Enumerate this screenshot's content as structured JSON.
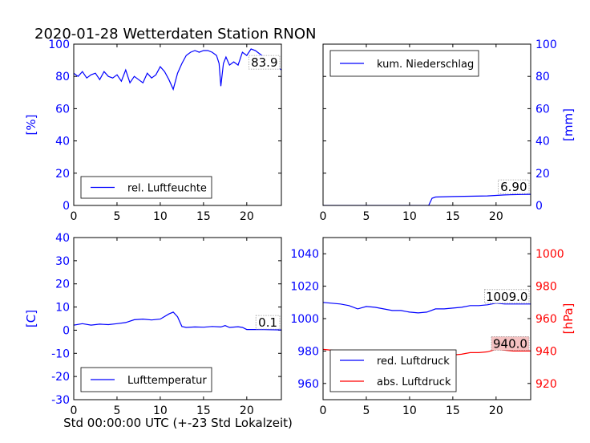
{
  "title": "2020-01-28 Wetterdaten Station RNON",
  "xlabel": "Std 00:00:00 UTC (+-23 Std Lokalzeit)",
  "colors": {
    "blue": "#0000ff",
    "red": "#ff0000",
    "value_box_red": "#f4c2c2",
    "value_box": "#ffffff"
  },
  "chart_data": [
    {
      "id": "humidity",
      "type": "line",
      "ylabel": "[%]",
      "ylabel_side": "left",
      "xlim": [
        0,
        24
      ],
      "ylim": [
        0,
        100
      ],
      "xticks": [
        0,
        5,
        10,
        15,
        20
      ],
      "yticks": [
        0,
        20,
        40,
        60,
        80,
        100
      ],
      "tick_color": "#0000ff",
      "legend": "lower-left",
      "current_value": "83.9",
      "series": [
        {
          "name": "rel. Luftfeuchte",
          "color": "#0000ff",
          "x": [
            0,
            0.5,
            1,
            1.5,
            2,
            2.5,
            3,
            3.5,
            4,
            4.5,
            5,
            5.5,
            6,
            6.5,
            7,
            7.5,
            8,
            8.5,
            9,
            9.5,
            10,
            10.5,
            11,
            11.5,
            12,
            12.5,
            13,
            13.5,
            14,
            14.5,
            15,
            15.5,
            16,
            16.5,
            16.8,
            17,
            17.3,
            17.6,
            18,
            18.5,
            19,
            19.5,
            20,
            20.5,
            21,
            21.5,
            22,
            22.5,
            23,
            23.5,
            24
          ],
          "y": [
            82,
            80,
            83,
            79,
            81,
            82,
            78,
            83,
            80,
            79,
            81,
            77,
            84,
            76,
            80,
            78,
            76,
            82,
            79,
            81,
            86,
            83,
            78,
            72,
            82,
            88,
            93,
            95,
            96,
            95,
            96,
            96,
            95,
            93,
            88,
            74,
            88,
            92,
            87,
            89,
            87,
            95,
            93,
            97,
            96,
            94,
            92,
            90,
            89,
            86,
            84
          ]
        }
      ]
    },
    {
      "id": "precipitation",
      "type": "line",
      "ylabel": "[mm]",
      "ylabel_side": "right",
      "xlim": [
        0,
        24
      ],
      "ylim": [
        0,
        100
      ],
      "xticks": [
        0,
        5,
        10,
        15,
        20
      ],
      "yticks": [
        0,
        20,
        40,
        60,
        80,
        100
      ],
      "tick_color": "#0000ff",
      "legend": "upper-left",
      "current_value": "6.90",
      "series": [
        {
          "name": "kum. Niederschlag",
          "color": "#0000ff",
          "x": [
            0,
            5,
            10,
            12.2,
            12.6,
            13,
            15,
            17,
            19,
            20,
            21,
            22,
            23,
            24
          ],
          "y": [
            0,
            0,
            0,
            0,
            4.5,
            5.2,
            5.5,
            5.7,
            5.9,
            6.2,
            6.5,
            6.7,
            6.8,
            6.9
          ]
        }
      ]
    },
    {
      "id": "temperature",
      "type": "line",
      "ylabel": "[C]",
      "ylabel_side": "left",
      "xlim": [
        0,
        24
      ],
      "ylim": [
        -30,
        40
      ],
      "xticks": [
        0,
        5,
        10,
        15,
        20
      ],
      "yticks": [
        -30,
        -20,
        -10,
        0,
        10,
        20,
        30,
        40
      ],
      "tick_color": "#0000ff",
      "legend": "lower-left",
      "current_value": "0.1",
      "series": [
        {
          "name": "Lufttemperatur",
          "color": "#0000ff",
          "x": [
            0,
            1,
            2,
            3,
            4,
            5,
            6,
            7,
            8,
            9,
            10,
            11,
            11.5,
            12,
            12.5,
            13,
            14,
            15,
            16,
            17,
            17.5,
            18,
            19,
            19.5,
            20,
            21,
            22,
            23,
            24
          ],
          "y": [
            2.2,
            2.8,
            2.2,
            2.6,
            2.4,
            2.8,
            3.3,
            4.5,
            4.8,
            4.4,
            4.8,
            7,
            7.8,
            5.8,
            1.6,
            1.2,
            1.4,
            1.3,
            1.6,
            1.4,
            2,
            1.2,
            1.5,
            1.2,
            0.3,
            0.3,
            0.3,
            0.2,
            0.1
          ]
        }
      ]
    },
    {
      "id": "pressure",
      "type": "line",
      "ylabel": "[hPa]",
      "ylabel_side": "right",
      "xlim": [
        0,
        24
      ],
      "ylim": [
        950,
        1050
      ],
      "xticks": [
        0,
        5,
        10,
        15,
        20
      ],
      "yticks": [
        960,
        980,
        1000,
        1020,
        1040
      ],
      "y2lim": [
        910,
        1010
      ],
      "y2ticks": [
        920,
        940,
        960,
        980,
        1000
      ],
      "tick_color": "#0000ff",
      "tick2_color": "#ff0000",
      "legend": "lower-left",
      "current_value": "1009.0",
      "current_value2": "940.0",
      "series": [
        {
          "name": "red. Luftdruck",
          "color": "#0000ff",
          "axis": "left",
          "x": [
            0,
            1,
            2,
            3,
            4,
            5,
            6,
            7,
            8,
            9,
            10,
            11,
            12,
            13,
            14,
            15,
            16,
            17,
            18,
            19,
            20,
            21,
            22,
            23,
            24
          ],
          "y": [
            1010,
            1009.5,
            1009,
            1008,
            1006,
            1007.5,
            1007,
            1006,
            1005,
            1005,
            1004,
            1003.5,
            1004,
            1006,
            1006,
            1006.5,
            1007,
            1008,
            1008,
            1008.5,
            1009.5,
            1009,
            1009,
            1009,
            1009
          ]
        },
        {
          "name": "abs. Luftdruck",
          "color": "#ff0000",
          "axis": "right",
          "x": [
            0,
            1,
            2,
            3,
            4,
            5,
            6,
            7,
            8,
            9,
            10,
            11,
            12,
            13,
            14,
            15,
            16,
            17,
            18,
            19,
            20,
            21,
            22,
            23,
            24
          ],
          "y": [
            941,
            940.5,
            940,
            939,
            937,
            938.5,
            938,
            937,
            936,
            936,
            935.5,
            935,
            936,
            937.5,
            937,
            937.5,
            938,
            939,
            939,
            939.5,
            941,
            940.5,
            940,
            940,
            940
          ]
        }
      ]
    }
  ]
}
